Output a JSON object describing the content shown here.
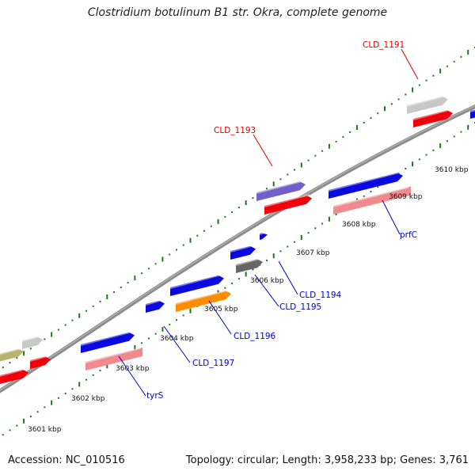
{
  "title": "Clostridium botulinum B1 str. Okra, complete genome",
  "footer": {
    "accession": "Accession: NC_010516",
    "summary": "Topology: circular; Length: 3,958,233 bp; Genes: 3,761"
  },
  "ticks": [
    "3601 kbp",
    "3602 kbp",
    "3603 kbp",
    "3604 kbp",
    "3605 kbp",
    "3606 kbp",
    "3607 kbp",
    "3608 kbp",
    "3609 kbp",
    "3610 kbp"
  ],
  "gene_labels": [
    {
      "text": "CLD_1191",
      "color": "#e00000"
    },
    {
      "text": "CLD_1193",
      "color": "#e00000"
    },
    {
      "text": "prfC",
      "color": "#0000cc"
    },
    {
      "text": "CLD_1194",
      "color": "#0000cc"
    },
    {
      "text": "CLD_1195",
      "color": "#0000cc"
    },
    {
      "text": "CLD_1196",
      "color": "#0000cc"
    },
    {
      "text": "CLD_1197",
      "color": "#0000cc"
    },
    {
      "text": "tyrS",
      "color": "#0000cc"
    }
  ],
  "colors": {
    "blue": "#0a0ae0",
    "red": "#f0000a",
    "pink": "#f08a8e",
    "gray": "#c8c8c8",
    "darkgray": "#666666",
    "purple": "#7060cc",
    "orange": "#ff8c00",
    "olive": "#b8b470",
    "backbone": "#8c8c8c",
    "tick": "#1a7a1a"
  }
}
